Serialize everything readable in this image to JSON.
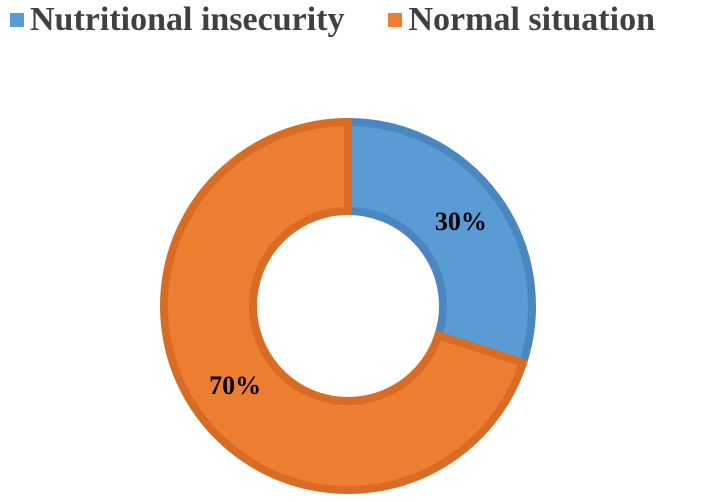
{
  "chart_data": {
    "type": "pie",
    "variant": "donut",
    "categories": [
      "Nutritional insecurity",
      "Normal situation"
    ],
    "values": [
      30,
      70
    ],
    "data_labels": [
      "30%",
      "70%"
    ],
    "colors": [
      "#5B9BD5",
      "#ED7D31"
    ],
    "edge_colors": [
      "#4A86C0",
      "#D86C25"
    ],
    "legend_position": "top",
    "title": ""
  }
}
